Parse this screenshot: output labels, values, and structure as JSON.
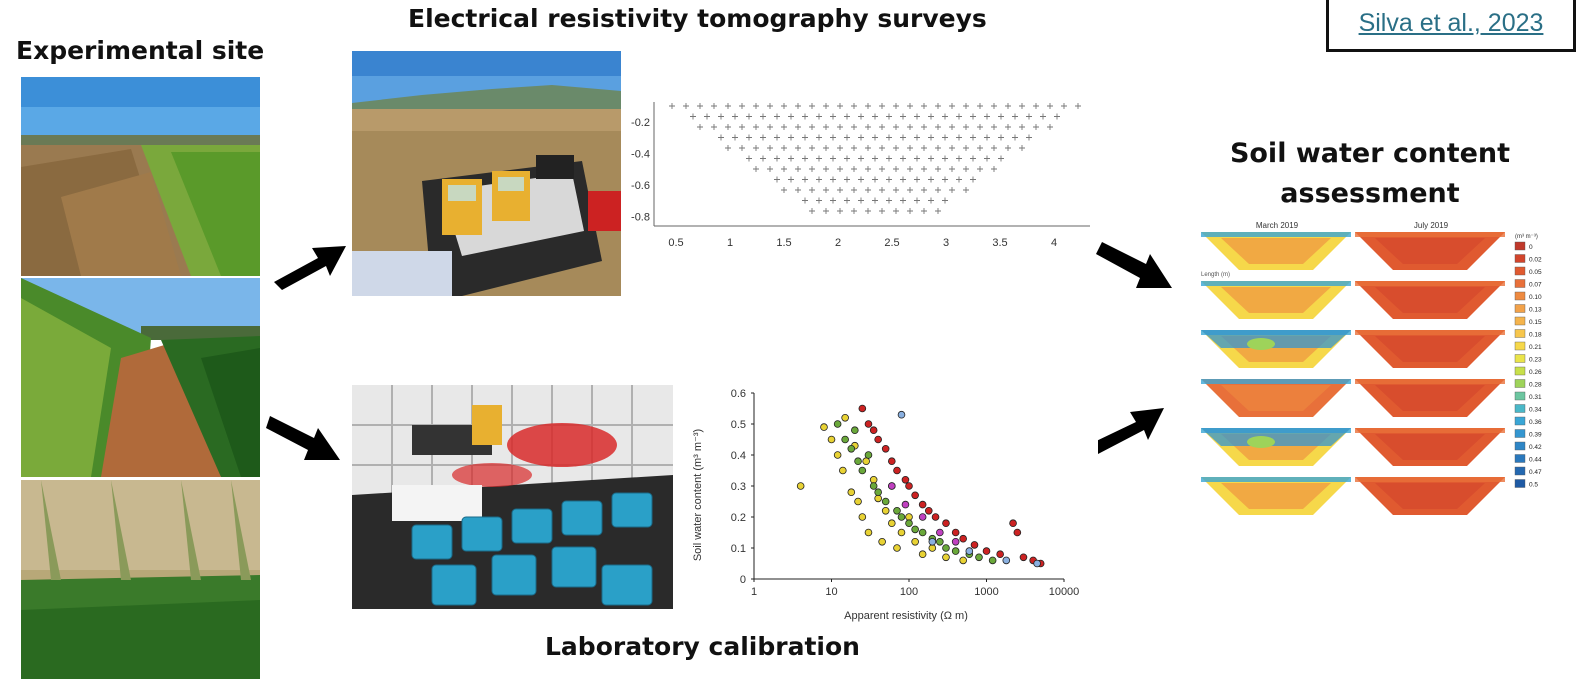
{
  "titles": {
    "experimental_site": "Experimental site",
    "ert_surveys": "Electrical resistivity tomography surveys",
    "soil_water_line1": "Soil water content",
    "soil_water_line2": "assessment",
    "lab_calibration": "Laboratory calibration"
  },
  "citation": "Silva et al., 2023",
  "ert_plot": {
    "x_ticks": [
      "0.5",
      "1",
      "1.5",
      "2",
      "2.5",
      "3",
      "3.5",
      "4"
    ],
    "y_ticks": [
      "-0.2",
      "-0.4",
      "-0.6",
      "-0.8"
    ]
  },
  "swc_maps": {
    "col1": "March 2019",
    "col2": "July 2019",
    "length_label": "Length (m)",
    "unit": "(m³ m⁻³)",
    "legend": [
      {
        "label": "0",
        "color": "#c0392b"
      },
      {
        "label": "0.02",
        "color": "#d2452c"
      },
      {
        "label": "0.05",
        "color": "#e05a30"
      },
      {
        "label": "0.07",
        "color": "#e8703a"
      },
      {
        "label": "0.10",
        "color": "#ee8a40"
      },
      {
        "label": "0.13",
        "color": "#f2a24a"
      },
      {
        "label": "0.15",
        "color": "#f5b44c"
      },
      {
        "label": "0.18",
        "color": "#f7c64c"
      },
      {
        "label": "0.21",
        "color": "#f6d84a"
      },
      {
        "label": "0.23",
        "color": "#eae44a"
      },
      {
        "label": "0.26",
        "color": "#c8e04a"
      },
      {
        "label": "0.28",
        "color": "#9ed35a"
      },
      {
        "label": "0.31",
        "color": "#6cc6a0"
      },
      {
        "label": "0.34",
        "color": "#4ab8c8"
      },
      {
        "label": "0.36",
        "color": "#3aa6d6"
      },
      {
        "label": "0.39",
        "color": "#3496d0"
      },
      {
        "label": "0.42",
        "color": "#2e86c6"
      },
      {
        "label": "0.44",
        "color": "#2a78bc"
      },
      {
        "label": "0.47",
        "color": "#2468b0"
      },
      {
        "label": "0.5",
        "color": "#1e5aa4"
      }
    ]
  },
  "chart_data": {
    "type": "scatter",
    "title": "",
    "xlabel": "Apparent resistivity (Ω m)",
    "ylabel": "Soil water content (m³ m⁻³)",
    "x_scale": "log",
    "xlim": [
      1,
      10000
    ],
    "ylim": [
      0,
      0.6
    ],
    "x_ticks": [
      "1",
      "10",
      "100",
      "1000",
      "10000"
    ],
    "y_ticks": [
      "0",
      "0.1",
      "0.2",
      "0.3",
      "0.4",
      "0.5",
      "0.6"
    ],
    "series": [
      {
        "color": "#e8d234",
        "points": [
          [
            4,
            0.3
          ],
          [
            8,
            0.49
          ],
          [
            10,
            0.45
          ],
          [
            12,
            0.4
          ],
          [
            14,
            0.35
          ],
          [
            15,
            0.52
          ],
          [
            18,
            0.28
          ],
          [
            20,
            0.43
          ],
          [
            22,
            0.25
          ],
          [
            25,
            0.2
          ],
          [
            28,
            0.38
          ],
          [
            30,
            0.15
          ],
          [
            35,
            0.32
          ],
          [
            40,
            0.26
          ],
          [
            45,
            0.12
          ],
          [
            50,
            0.22
          ],
          [
            60,
            0.18
          ],
          [
            70,
            0.1
          ],
          [
            80,
            0.15
          ],
          [
            100,
            0.2
          ],
          [
            120,
            0.12
          ],
          [
            150,
            0.08
          ],
          [
            200,
            0.1
          ],
          [
            300,
            0.07
          ],
          [
            500,
            0.06
          ]
        ]
      },
      {
        "color": "#6aa83a",
        "points": [
          [
            12,
            0.5
          ],
          [
            15,
            0.45
          ],
          [
            18,
            0.42
          ],
          [
            20,
            0.48
          ],
          [
            22,
            0.38
          ],
          [
            25,
            0.35
          ],
          [
            30,
            0.4
          ],
          [
            35,
            0.3
          ],
          [
            40,
            0.28
          ],
          [
            50,
            0.25
          ],
          [
            60,
            0.3
          ],
          [
            70,
            0.22
          ],
          [
            80,
            0.2
          ],
          [
            100,
            0.18
          ],
          [
            120,
            0.16
          ],
          [
            150,
            0.15
          ],
          [
            200,
            0.13
          ],
          [
            250,
            0.12
          ],
          [
            300,
            0.1
          ],
          [
            400,
            0.09
          ],
          [
            600,
            0.08
          ],
          [
            800,
            0.07
          ],
          [
            1200,
            0.06
          ]
        ]
      },
      {
        "color": "#cc2222",
        "points": [
          [
            25,
            0.55
          ],
          [
            30,
            0.5
          ],
          [
            35,
            0.48
          ],
          [
            40,
            0.45
          ],
          [
            50,
            0.42
          ],
          [
            60,
            0.38
          ],
          [
            70,
            0.35
          ],
          [
            90,
            0.32
          ],
          [
            100,
            0.3
          ],
          [
            120,
            0.27
          ],
          [
            150,
            0.24
          ],
          [
            180,
            0.22
          ],
          [
            220,
            0.2
          ],
          [
            300,
            0.18
          ],
          [
            400,
            0.15
          ],
          [
            500,
            0.13
          ],
          [
            700,
            0.11
          ],
          [
            1000,
            0.09
          ],
          [
            1500,
            0.08
          ],
          [
            2200,
            0.18
          ],
          [
            2500,
            0.15
          ],
          [
            3000,
            0.07
          ],
          [
            4000,
            0.06
          ],
          [
            5000,
            0.05
          ]
        ]
      },
      {
        "color": "#c040c0",
        "points": [
          [
            60,
            0.3
          ],
          [
            90,
            0.24
          ],
          [
            150,
            0.2
          ],
          [
            250,
            0.15
          ],
          [
            400,
            0.12
          ]
        ]
      },
      {
        "color": "#8ab0e0",
        "points": [
          [
            80,
            0.53
          ],
          [
            200,
            0.12
          ],
          [
            600,
            0.09
          ],
          [
            1800,
            0.06
          ],
          [
            4500,
            0.05
          ]
        ]
      }
    ]
  }
}
